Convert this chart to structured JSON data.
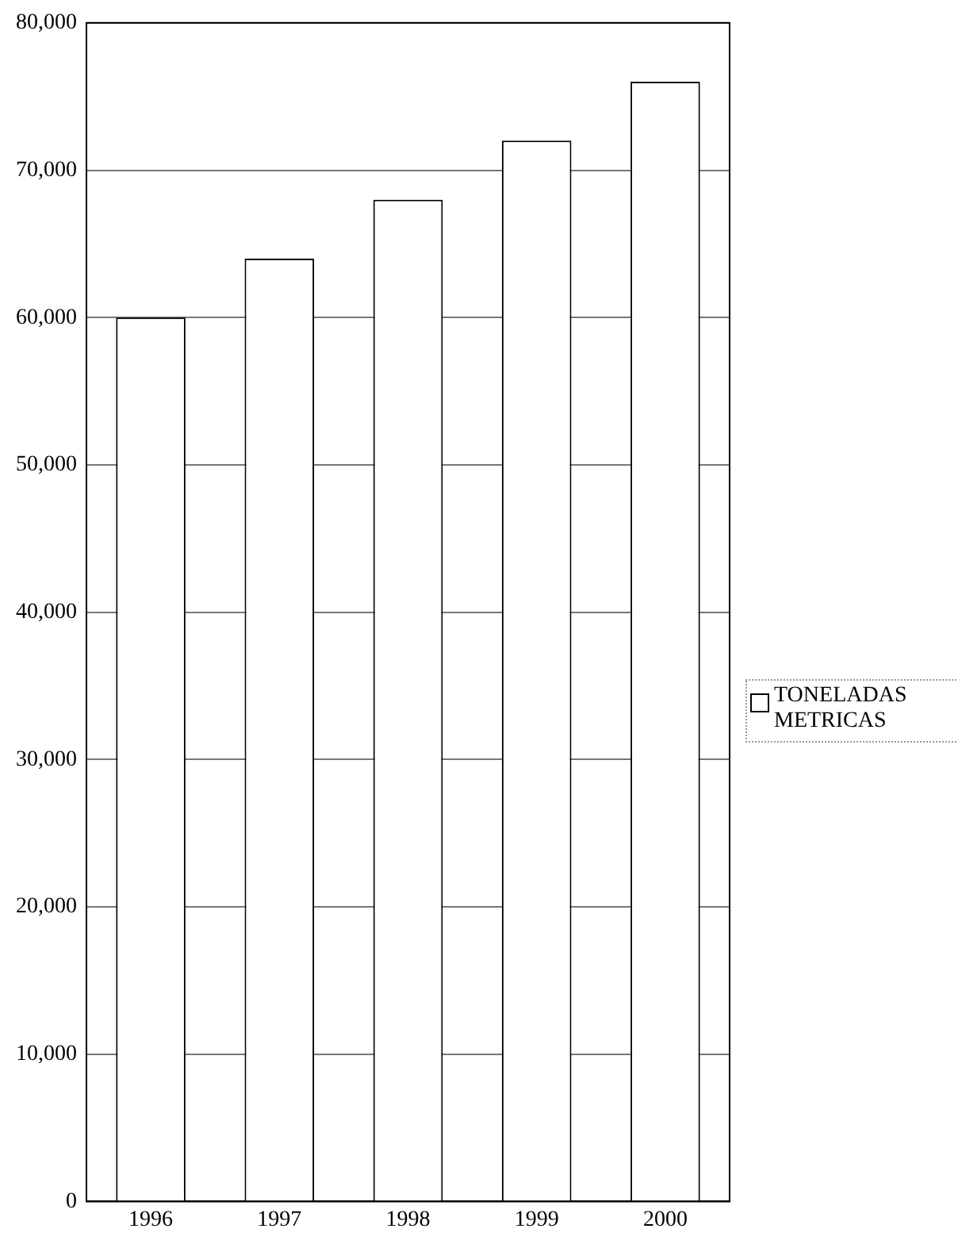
{
  "chart_data": {
    "type": "bar",
    "categories": [
      "1996",
      "1997",
      "1998",
      "1999",
      "2000"
    ],
    "series": [
      {
        "name": "TONELADAS METRICAS",
        "color": "#ffffff",
        "values": [
          60000,
          64000,
          68000,
          72000,
          76000
        ]
      }
    ],
    "ylim": [
      0,
      80000
    ],
    "yticks": [
      {
        "value": 0,
        "label": "0"
      },
      {
        "value": 10000,
        "label": "10,000"
      },
      {
        "value": 20000,
        "label": "20,000"
      },
      {
        "value": 30000,
        "label": "30,000"
      },
      {
        "value": 40000,
        "label": "40,000"
      },
      {
        "value": 50000,
        "label": "50,000"
      },
      {
        "value": 60000,
        "label": "60,000"
      },
      {
        "value": 70000,
        "label": "70,000"
      },
      {
        "value": 80000,
        "label": "80,000"
      }
    ],
    "grid": "y",
    "legend": "right"
  }
}
